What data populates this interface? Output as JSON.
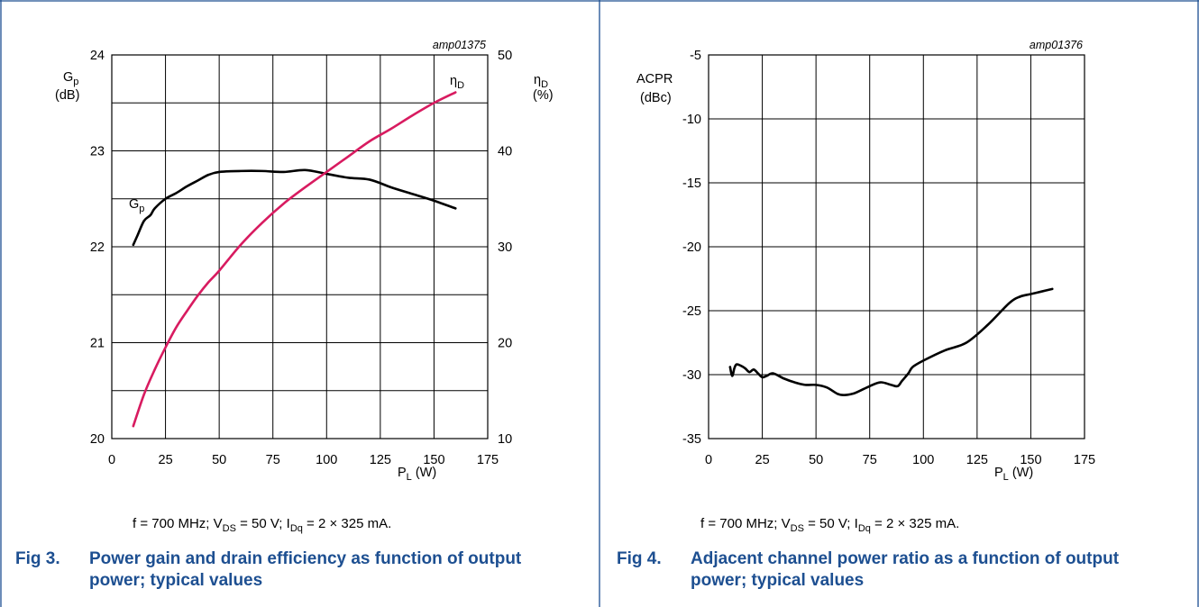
{
  "colors": {
    "frame": "#1d4f91",
    "caption": "#1d4f91",
    "efficiency_curve": "#d81b60",
    "gain_curve": "#000000"
  },
  "figures": [
    {
      "ref": "amp01375",
      "conditions": {
        "f": "f = 700 MHz; V",
        "vds_sub": "DS",
        "vds": " = 50 V; I",
        "idq_sub": "Dq",
        "idq": " = 2 × 325 mA."
      },
      "caption": {
        "number": "Fig 3.",
        "text": "Power gain and drain efficiency as function of output power; typical values"
      }
    },
    {
      "ref": "amp01376",
      "conditions": {
        "f": "f = 700 MHz; V",
        "vds_sub": "DS",
        "vds": " = 50 V; I",
        "idq_sub": "Dq",
        "idq": " = 2 × 325 mA."
      },
      "caption": {
        "number": "Fig 4.",
        "text": "Adjacent channel power ratio as a function of output power; typical values"
      }
    }
  ],
  "chart_data": [
    {
      "type": "line",
      "xlabel": {
        "main": "P",
        "sub": "L",
        "unit": " (W)"
      },
      "ylabel_left": {
        "main": "G",
        "sub": "p",
        "unit": "(dB)"
      },
      "ylabel_right": {
        "main": "η",
        "sub": "D",
        "unit": "(%)"
      },
      "xlim": [
        0,
        175
      ],
      "ylim_left": [
        20,
        24
      ],
      "ylim_right": [
        10,
        50
      ],
      "x_ticks": [
        "0",
        "25",
        "50",
        "75",
        "100",
        "125",
        "150",
        "175"
      ],
      "y_ticks_left": [
        "20",
        "21",
        "22",
        "23",
        "24"
      ],
      "y_ticks_right": [
        "10",
        "20",
        "30",
        "40",
        "50"
      ],
      "grid": true,
      "series": [
        {
          "name": "G",
          "name_sub": "p",
          "axis": "left",
          "x": [
            10,
            12,
            15,
            18,
            20,
            25,
            30,
            35,
            40,
            45,
            50,
            60,
            70,
            80,
            90,
            100,
            110,
            120,
            130,
            140,
            150,
            160
          ],
          "values": [
            22.02,
            22.12,
            22.27,
            22.33,
            22.4,
            22.5,
            22.56,
            22.63,
            22.69,
            22.75,
            22.78,
            22.79,
            22.79,
            22.78,
            22.8,
            22.76,
            22.72,
            22.7,
            22.62,
            22.55,
            22.48,
            22.4
          ]
        },
        {
          "name": "η",
          "name_sub": "D",
          "axis": "right",
          "x": [
            10,
            15,
            20,
            25,
            30,
            35,
            40,
            45,
            50,
            60,
            70,
            80,
            90,
            100,
            110,
            120,
            130,
            140,
            150,
            160
          ],
          "values": [
            11.3,
            14.6,
            17.2,
            19.5,
            21.6,
            23.3,
            24.9,
            26.3,
            27.5,
            30.2,
            32.5,
            34.5,
            36.2,
            37.8,
            39.4,
            41.0,
            42.3,
            43.7,
            45.0,
            46.1
          ]
        }
      ]
    },
    {
      "type": "line",
      "xlabel": {
        "main": "P",
        "sub": "L",
        "unit": " (W)"
      },
      "ylabel": {
        "main": "ACPR",
        "unit": "(dBc)"
      },
      "xlim": [
        0,
        175
      ],
      "ylim": [
        -35,
        -5
      ],
      "x_ticks": [
        "0",
        "25",
        "50",
        "75",
        "100",
        "125",
        "150",
        "175"
      ],
      "y_ticks": [
        "-35",
        "-30",
        "-25",
        "-20",
        "-15",
        "-10",
        "-5"
      ],
      "grid": true,
      "series": [
        {
          "axis": "left",
          "x": [
            10,
            11,
            12,
            13,
            15,
            17,
            19,
            21,
            23,
            25,
            27,
            30,
            35,
            40,
            45,
            50,
            55,
            60,
            63,
            67,
            70,
            75,
            80,
            85,
            88,
            90,
            93,
            95,
            100,
            110,
            120,
            130,
            140,
            145,
            150,
            155,
            160
          ],
          "values": [
            -29.4,
            -30.1,
            -29.5,
            -29.2,
            -29.3,
            -29.5,
            -29.8,
            -29.6,
            -29.9,
            -30.2,
            -30.1,
            -29.9,
            -30.3,
            -30.6,
            -30.8,
            -30.8,
            -31.0,
            -31.5,
            -31.6,
            -31.5,
            -31.3,
            -30.9,
            -30.6,
            -30.8,
            -30.9,
            -30.5,
            -29.9,
            -29.4,
            -28.9,
            -28.1,
            -27.5,
            -26.1,
            -24.4,
            -23.9,
            -23.7,
            -23.5,
            -23.3
          ]
        }
      ]
    }
  ]
}
